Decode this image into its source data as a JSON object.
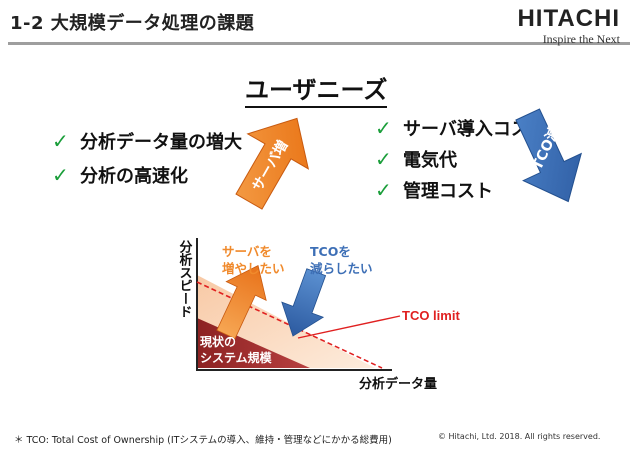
{
  "header": {
    "title": "1-2 大規模データ処理の課題",
    "logo_main": "HITACHI",
    "logo_tagline": "Inspire the Next"
  },
  "needs_heading": "ユーザニーズ",
  "left_list": [
    {
      "icon": "check-icon",
      "label": "分析データ量の増大"
    },
    {
      "icon": "check-icon",
      "label": "分析の高速化"
    }
  ],
  "right_list": [
    {
      "icon": "check-icon",
      "label": "サーバ導入コスト"
    },
    {
      "icon": "check-icon",
      "label": "電気代"
    },
    {
      "icon": "check-icon",
      "label": "管理コスト"
    }
  ],
  "arrows": {
    "server_increase": "サーバ増",
    "tco_decrease": "TCO減"
  },
  "diagram": {
    "y_axis_label": "分析スピード",
    "x_axis_label": "分析データ量",
    "orange_label": [
      "サーバを",
      "増やしたい"
    ],
    "blue_label": [
      "TCOを",
      "減らしたい"
    ],
    "tco_limit": "TCO limit",
    "current_label": [
      "現状の",
      "システム規模"
    ]
  },
  "colors": {
    "orange": "#f08a2c",
    "blue": "#3d6fb6",
    "dark_red": "#9b2a2a",
    "limit_red": "#e02020",
    "check_green": "#1a9e3a"
  },
  "footer": {
    "footnote": "＊ TCO: Total Cost of Ownership (ITシステムの導入、維持・管理などにかかる総費用)",
    "copyright": "© Hitachi, Ltd. 2018. All rights reserved."
  }
}
